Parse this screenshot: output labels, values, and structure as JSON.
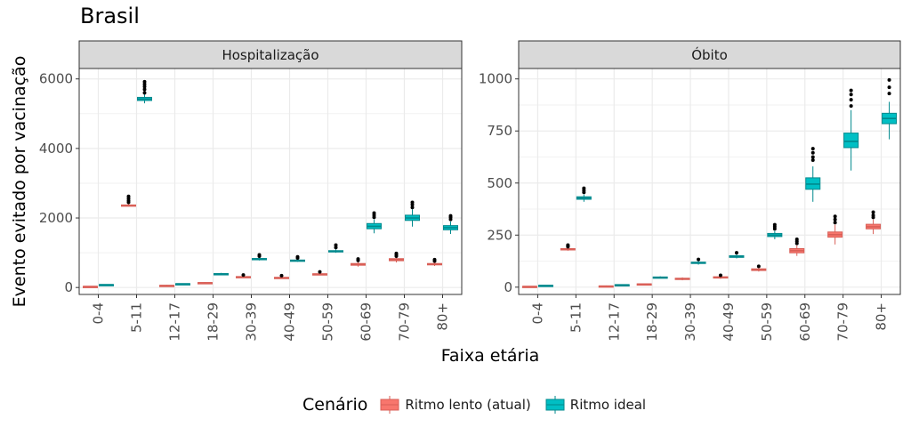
{
  "title": "Brasil",
  "chart_data": {
    "type": "boxplot",
    "xlabel": "Faixa etária",
    "ylabel": "Evento evitado por vacinação",
    "categories": [
      "0-4",
      "5-11",
      "12-17",
      "18-29",
      "30-39",
      "40-49",
      "50-59",
      "60-69",
      "70-79",
      "80+"
    ],
    "legend": {
      "title": "Cenário",
      "position": "bottom",
      "items": [
        {
          "name": "Ritmo lento (atual)",
          "color": "#F8766D"
        },
        {
          "name": "Ritmo ideal",
          "color": "#00BFC4"
        }
      ]
    },
    "panels": [
      {
        "title": "Hospitalização",
        "ylim": [
          -200,
          6300
        ],
        "yticks": [
          0,
          2000,
          4000,
          6000
        ],
        "series": [
          {
            "name": "Ritmo lento (atual)",
            "boxes": [
              [
                25,
                28,
                30,
                32,
                35
              ],
              [
                2330,
                2350,
                2360,
                2375,
                2400
              ],
              [
                40,
                52,
                57,
                62,
                75
              ],
              [
                115,
                128,
                135,
                142,
                155
              ],
              [
                275,
                295,
                305,
                315,
                335
              ],
              [
                250,
                272,
                282,
                292,
                312
              ],
              [
                350,
                375,
                385,
                395,
                420
              ],
              [
                600,
                640,
                665,
                690,
                740
              ],
              [
                720,
                770,
                800,
                830,
                880
              ],
              [
                620,
                650,
                670,
                690,
                730
              ]
            ],
            "outliers": [
              [],
              [
                2450,
                2500,
                2560,
                2620
              ],
              [],
              [],
              [
                360
              ],
              [
                340
              ],
              [
                450
              ],
              [
                780,
                820
              ],
              [
                900,
                940,
                980
              ],
              [
                760,
                800
              ]
            ]
          },
          {
            "name": "Ritmo ideal",
            "boxes": [
              [
                70,
                75,
                80,
                85,
                90
              ],
              [
                5300,
                5380,
                5420,
                5470,
                5550
              ],
              [
                90,
                100,
                105,
                110,
                120
              ],
              [
                360,
                380,
                390,
                400,
                420
              ],
              [
                780,
                805,
                820,
                835,
                860
              ],
              [
                740,
                765,
                778,
                790,
                815
              ],
              [
                1000,
                1030,
                1045,
                1060,
                1100
              ],
              [
                1560,
                1690,
                1760,
                1840,
                1960
              ],
              [
                1750,
                1930,
                2000,
                2080,
                2250
              ],
              [
                1540,
                1660,
                1720,
                1780,
                1900
              ]
            ],
            "outliers": [
              [],
              [
                5600,
                5700,
                5780,
                5850,
                5920
              ],
              [],
              [],
              [
                900,
                940
              ],
              [
                850,
                880
              ],
              [
                1150,
                1220
              ],
              [
                2020,
                2080,
                2140
              ],
              [
                2300,
                2380,
                2450
              ],
              [
                1960,
                2020,
                2060
              ]
            ]
          }
        ]
      },
      {
        "title": "Óbito",
        "ylim": [
          -35,
          1050
        ],
        "yticks": [
          0,
          250,
          500,
          750,
          1000
        ],
        "series": [
          {
            "name": "Ritmo lento (atual)",
            "boxes": [
              [
                1,
                2,
                3,
                4,
                5
              ],
              [
                175,
                179,
                182,
                185,
                189
              ],
              [
                2,
                4,
                5,
                6,
                8
              ],
              [
                12,
                14,
                15,
                16,
                18
              ],
              [
                33,
                37,
                40,
                43,
                47
              ],
              [
                40,
                44,
                47,
                50,
                54
              ],
              [
                75,
                80,
                84,
                88,
                93
              ],
              [
                150,
                165,
                175,
                185,
                200
              ],
              [
                205,
                240,
                252,
                265,
                300
              ],
              [
                255,
                280,
                290,
                302,
                325
              ]
            ],
            "outliers": [
              [],
              [
                194,
                198,
                202
              ],
              [],
              [],
              [],
              [
                57
              ],
              [
                100
              ],
              [
                210,
                220,
                230
              ],
              [
                310,
                325,
                340
              ],
              [
                335,
                345,
                360
              ]
            ]
          },
          {
            "name": "Ritmo ideal",
            "boxes": [
              [
                6,
                7,
                8,
                9,
                10
              ],
              [
                410,
                422,
                428,
                434,
                445
              ],
              [
                8,
                10,
                11,
                12,
                14
              ],
              [
                42,
                45,
                47,
                49,
                52
              ],
              [
                108,
                114,
                117,
                120,
                126
              ],
              [
                138,
                143,
                147,
                151,
                157
              ],
              [
                230,
                243,
                250,
                258,
                270
              ],
              [
                410,
                470,
                495,
                525,
                580
              ],
              [
                560,
                670,
                700,
                740,
                850
              ],
              [
                710,
                785,
                810,
                835,
                890
              ]
            ],
            "outliers": [
              [],
              [
                455,
                465,
                475
              ],
              [],
              [],
              [
                133
              ],
              [
                165
              ],
              [
                280,
                290,
                300
              ],
              [
                610,
                625,
                645,
                665
              ],
              [
                870,
                900,
                925,
                945
              ],
              [
                930,
                960,
                995
              ]
            ]
          }
        ]
      }
    ]
  }
}
